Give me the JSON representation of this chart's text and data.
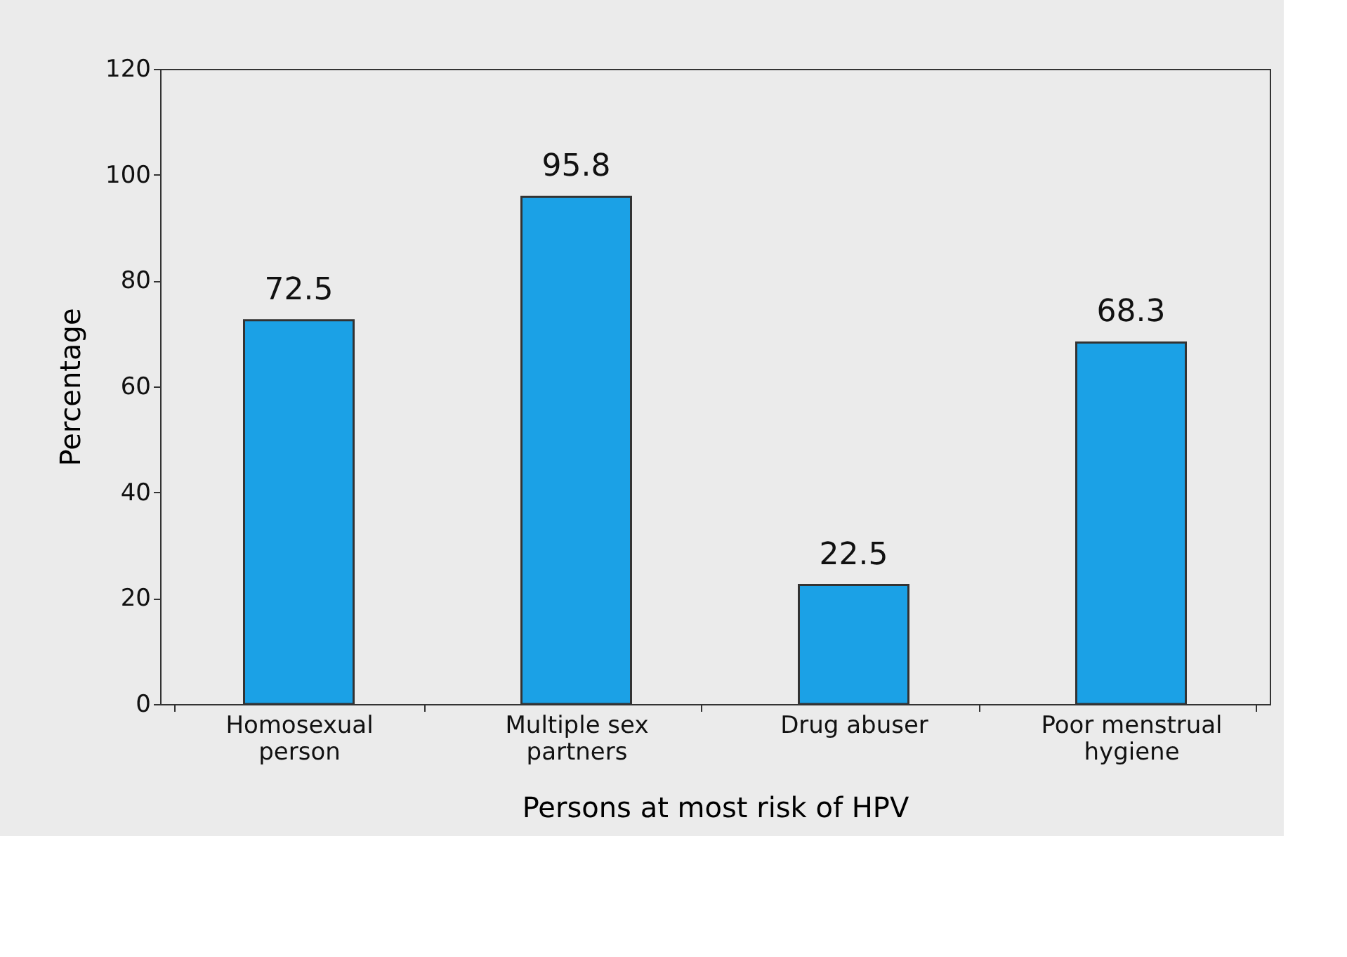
{
  "chart_data": {
    "type": "bar",
    "xlabel": "Persons at most risk of HPV",
    "ylabel": "Percentage",
    "categories": [
      "Homosexual\nperson",
      "Multiple sex\npartners",
      "Drug abuser",
      "Poor menstrual\nhygiene"
    ],
    "values": [
      72.5,
      95.8,
      22.5,
      68.3
    ],
    "color": "#1ba1e6",
    "ylim": [
      0,
      120
    ],
    "yticks": [
      0,
      20,
      40,
      60,
      80,
      100,
      120
    ],
    "data_labels": true,
    "grid": false
  }
}
